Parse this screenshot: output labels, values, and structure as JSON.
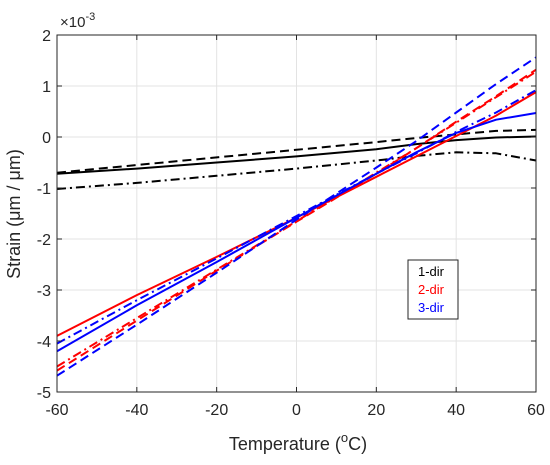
{
  "chart_data": {
    "type": "line",
    "title": "",
    "xlabel": {
      "main": "Temperature (",
      "sup": "o",
      "unit": "C)"
    },
    "ylabel": "Strain (μm / μm)",
    "y_multiplier": {
      "base": "×10",
      "exp": "-3"
    },
    "xlim": [
      -60,
      60
    ],
    "ylim": [
      -5,
      2
    ],
    "x_ticks": [
      -60,
      -40,
      -20,
      0,
      20,
      40,
      60
    ],
    "y_ticks": [
      -5,
      -4,
      -3,
      -2,
      -1,
      0,
      1,
      2
    ],
    "grid": true,
    "legend": {
      "placement": "lower-right",
      "entries": [
        {
          "label": "1-dir",
          "color": "#000000"
        },
        {
          "label": "2-dir",
          "color": "#ff0000"
        },
        {
          "label": "3-dir",
          "color": "#0000ff"
        }
      ]
    },
    "series": [
      {
        "direction": "1-dir",
        "color": "#000000",
        "style": "solid",
        "x": [
          -60,
          -40,
          -20,
          0,
          20,
          30,
          40,
          50,
          60
        ],
        "y": [
          -0.72,
          -0.62,
          -0.5,
          -0.38,
          -0.24,
          -0.14,
          -0.06,
          -0.01,
          0.01
        ]
      },
      {
        "direction": "1-dir",
        "color": "#000000",
        "style": "dashed",
        "x": [
          -60,
          -40,
          -20,
          0,
          20,
          30,
          40,
          50,
          60
        ],
        "y": [
          -0.7,
          -0.55,
          -0.4,
          -0.25,
          -0.1,
          -0.02,
          0.05,
          0.12,
          0.14
        ]
      },
      {
        "direction": "1-dir",
        "color": "#000000",
        "style": "dashdot",
        "x": [
          -60,
          -40,
          -20,
          0,
          20,
          30,
          40,
          50,
          60
        ],
        "y": [
          -1.02,
          -0.9,
          -0.76,
          -0.62,
          -0.46,
          -0.37,
          -0.3,
          -0.32,
          -0.46
        ]
      },
      {
        "direction": "2-dir",
        "color": "#ff0000",
        "style": "solid",
        "x": [
          -60,
          -40,
          -20,
          0,
          20,
          30,
          40,
          50,
          60
        ],
        "y": [
          -3.9,
          -3.1,
          -2.35,
          -1.58,
          -0.78,
          -0.38,
          0.02,
          0.42,
          0.88
        ]
      },
      {
        "direction": "2-dir",
        "color": "#ff0000",
        "style": "dashed",
        "x": [
          -60,
          -40,
          -20,
          0,
          20,
          30,
          40,
          50,
          60
        ],
        "y": [
          -4.58,
          -3.6,
          -2.62,
          -1.66,
          -0.72,
          -0.22,
          0.3,
          0.8,
          1.32
        ]
      },
      {
        "direction": "2-dir",
        "color": "#ff0000",
        "style": "dashdot",
        "x": [
          -60,
          -40,
          -20,
          0,
          20,
          30,
          40,
          50,
          60
        ],
        "y": [
          -4.5,
          -3.55,
          -2.6,
          -1.65,
          -0.7,
          -0.22,
          0.28,
          0.78,
          1.28
        ]
      },
      {
        "direction": "3-dir",
        "color": "#0000ff",
        "style": "solid",
        "x": [
          -60,
          -40,
          -20,
          0,
          20,
          30,
          40,
          50,
          60
        ],
        "y": [
          -4.2,
          -3.3,
          -2.45,
          -1.58,
          -0.72,
          -0.3,
          0.08,
          0.34,
          0.47
        ]
      },
      {
        "direction": "3-dir",
        "color": "#0000ff",
        "style": "dashed",
        "x": [
          -60,
          -40,
          -20,
          0,
          20,
          30,
          40,
          50,
          60
        ],
        "y": [
          -4.68,
          -3.68,
          -2.66,
          -1.62,
          -0.6,
          -0.08,
          0.48,
          1.04,
          1.56
        ]
      },
      {
        "direction": "3-dir",
        "color": "#0000ff",
        "style": "dashdot",
        "x": [
          -60,
          -40,
          -20,
          0,
          20,
          30,
          40,
          50,
          60
        ],
        "y": [
          -4.05,
          -3.2,
          -2.38,
          -1.55,
          -0.72,
          -0.32,
          0.1,
          0.48,
          0.92
        ]
      }
    ]
  }
}
